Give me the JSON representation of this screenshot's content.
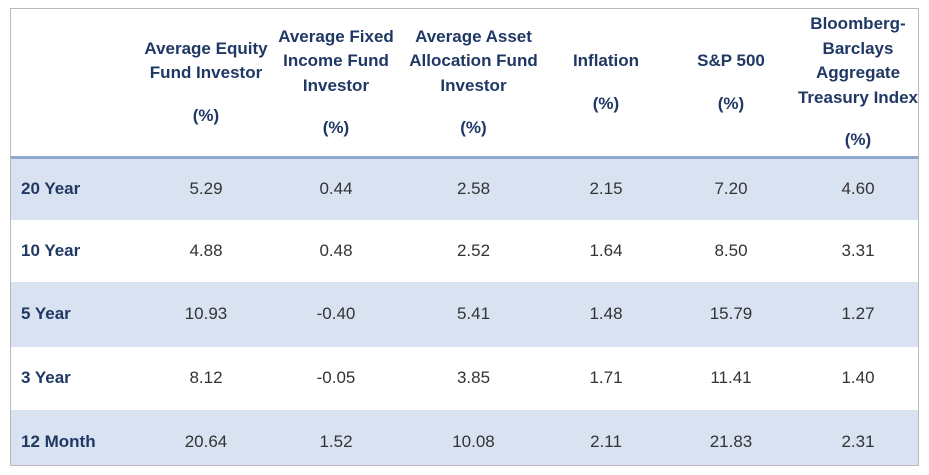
{
  "chart_data": {
    "type": "table",
    "columns": [
      {
        "name": "",
        "unit": ""
      },
      {
        "name": "Average Equity Fund Investor",
        "unit": "(%)"
      },
      {
        "name": "Average Fixed Income Fund Investor",
        "unit": "(%)"
      },
      {
        "name": "Average Asset Allocation Fund Investor",
        "unit": "(%)"
      },
      {
        "name": "Inflation",
        "unit": "(%)"
      },
      {
        "name": "S&P 500",
        "unit": "(%)"
      },
      {
        "name": "Bloomberg-Barclays Aggregate Treasury Index",
        "unit": "(%)"
      }
    ],
    "rows": [
      {
        "label": "20 Year",
        "values": [
          "5.29",
          "0.44",
          "2.58",
          "2.15",
          "7.20",
          "4.60"
        ]
      },
      {
        "label": "10 Year",
        "values": [
          "4.88",
          "0.48",
          "2.52",
          "1.64",
          "8.50",
          "3.31"
        ]
      },
      {
        "label": "5 Year",
        "values": [
          "10.93",
          "-0.40",
          "5.41",
          "1.48",
          "15.79",
          "1.27"
        ]
      },
      {
        "label": "3 Year",
        "values": [
          "8.12",
          "-0.05",
          "3.85",
          "1.71",
          "11.41",
          "1.40"
        ]
      },
      {
        "label": "12 Month",
        "values": [
          "20.64",
          "1.52",
          "10.08",
          "2.11",
          "21.83",
          "2.31"
        ]
      }
    ]
  },
  "colors": {
    "header_text": "#1f3864",
    "shaded_row": "#d9e2f1",
    "header_rule": "#8ea9cc"
  }
}
